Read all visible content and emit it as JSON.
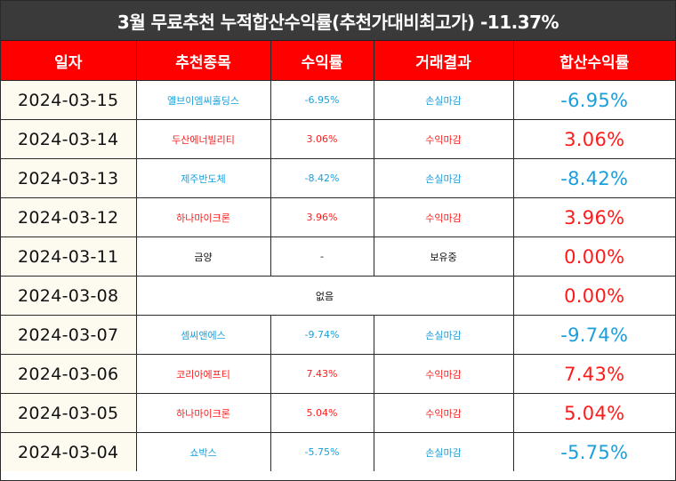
{
  "title": "3월 무료추천 누적합산수익률(추천가대비최고가) -11.37%",
  "headers": [
    "일자",
    "추천종목",
    "수익률",
    "거래결과",
    "합산수익률"
  ],
  "rows": [
    {
      "date": "2024-03-15",
      "stock": "엘브이엠씨홀딩스",
      "return": "-6.95%",
      "result": "손실마감",
      "cum": "-6.95%",
      "color": "#1a9fdb"
    },
    {
      "date": "2024-03-14",
      "stock": "두산에너빌리티",
      "return": "3.06%",
      "result": "수익마감",
      "cum": "3.06%",
      "color": "#ff1a1a"
    },
    {
      "date": "2024-03-13",
      "stock": "제주반도체",
      "return": "-8.42%",
      "result": "손실마감",
      "cum": "-8.42%",
      "color": "#1a9fdb"
    },
    {
      "date": "2024-03-12",
      "stock": "하나마이크론",
      "return": "3.96%",
      "result": "수익마감",
      "cum": "3.96%",
      "color": "#ff1a1a"
    },
    {
      "date": "2024-03-11",
      "stock": "금양",
      "return": "-",
      "result": "보유중",
      "cum": "0.00%",
      "color": "#111111"
    },
    {
      "date": "2024-03-08",
      "merged": "없음",
      "cum": "0.00%"
    },
    {
      "date": "2024-03-07",
      "stock": "셈씨앤에스",
      "return": "-9.74%",
      "result": "손실마감",
      "cum": "-9.74%",
      "color": "#1a9fdb"
    },
    {
      "date": "2024-03-06",
      "stock": "코리아에프티",
      "return": "7.43%",
      "result": "수익마감",
      "cum": "7.43%",
      "color": "#ff1a1a"
    },
    {
      "date": "2024-03-05",
      "stock": "하나마이크론",
      "return": "5.04%",
      "result": "수익마감",
      "cum": "5.04%",
      "color": "#ff1a1a"
    },
    {
      "date": "2024-03-04",
      "stock": "쇼박스",
      "return": "-5.75%",
      "result": "손실마감",
      "cum": "-5.75%",
      "color": "#1a9fdb"
    }
  ],
  "colors": {
    "header_bg": "#ff0000",
    "title_bg": "#3a3a3a",
    "loss": "#1a9fdb",
    "gain": "#ff1a1a"
  }
}
